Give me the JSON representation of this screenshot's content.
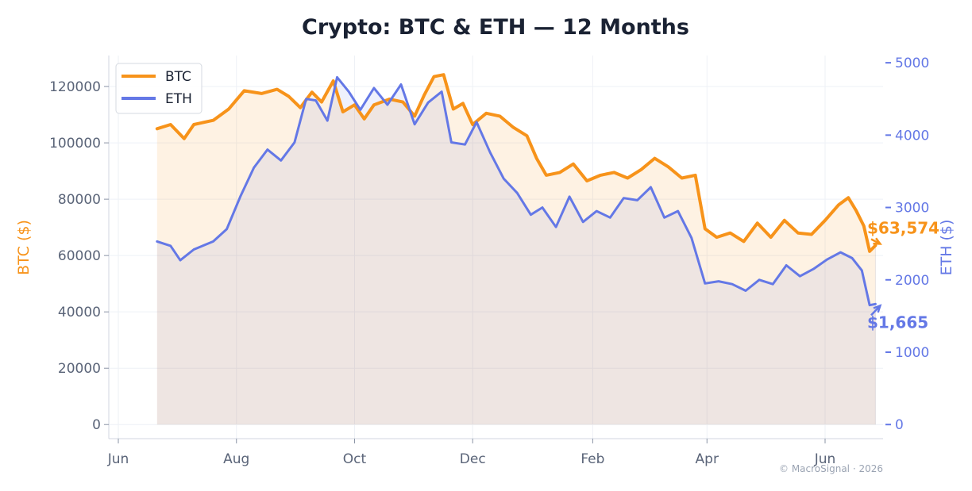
{
  "chart_data": {
    "type": "line",
    "title": "Crypto: BTC & ETH — 12 Months",
    "y_left_label": "BTC ($)",
    "y_right_label": "ETH ($)",
    "y_left_lim": [
      -5000,
      131000
    ],
    "y_right_lim": [
      -195,
      5100
    ],
    "y_left_ticks": [
      "0",
      "20000",
      "40000",
      "60000",
      "80000",
      "100000",
      "120000"
    ],
    "y_right_ticks": [
      "0",
      "1000",
      "2000",
      "3000",
      "4000",
      "5000"
    ],
    "x_ticks": [
      "Jun",
      "Aug",
      "Oct",
      "Dec",
      "Feb",
      "Apr",
      "Jun"
    ],
    "x_start": "2025-06-01",
    "x_end": "2026-06-25",
    "grid": true,
    "legend_position": "top-left",
    "series": [
      {
        "name": "BTC",
        "color": "#f7931a",
        "axis": "left",
        "points": [
          [
            "2025-06-21",
            105000
          ],
          [
            "2025-06-28",
            106500
          ],
          [
            "2025-07-05",
            101500
          ],
          [
            "2025-07-10",
            106500
          ],
          [
            "2025-07-20",
            108000
          ],
          [
            "2025-07-28",
            112000
          ],
          [
            "2025-08-05",
            118500
          ],
          [
            "2025-08-14",
            117500
          ],
          [
            "2025-08-22",
            119000
          ],
          [
            "2025-08-28",
            116500
          ],
          [
            "2025-09-03",
            112500
          ],
          [
            "2025-09-09",
            118000
          ],
          [
            "2025-09-14",
            114500
          ],
          [
            "2025-09-20",
            122000
          ],
          [
            "2025-09-25",
            111000
          ],
          [
            "2025-10-01",
            113500
          ],
          [
            "2025-10-06",
            108500
          ],
          [
            "2025-10-11",
            113500
          ],
          [
            "2025-10-19",
            115500
          ],
          [
            "2025-10-26",
            114500
          ],
          [
            "2025-11-01",
            109500
          ],
          [
            "2025-11-06",
            117000
          ],
          [
            "2025-11-11",
            123500
          ],
          [
            "2025-11-16",
            124200
          ],
          [
            "2025-11-21",
            112000
          ],
          [
            "2025-11-26",
            114000
          ],
          [
            "2025-12-01",
            106500
          ],
          [
            "2025-12-08",
            110500
          ],
          [
            "2025-12-15",
            109500
          ],
          [
            "2025-12-22",
            105500
          ],
          [
            "2025-12-29",
            102500
          ],
          [
            "2026-01-03",
            94500
          ],
          [
            "2026-01-08",
            88500
          ],
          [
            "2026-01-15",
            89500
          ],
          [
            "2026-01-22",
            92500
          ],
          [
            "2026-01-29",
            86500
          ],
          [
            "2026-02-05",
            88500
          ],
          [
            "2026-02-12",
            89500
          ],
          [
            "2026-02-19",
            87500
          ],
          [
            "2026-02-26",
            90500
          ],
          [
            "2026-03-05",
            94500
          ],
          [
            "2026-03-12",
            91500
          ],
          [
            "2026-03-19",
            87500
          ],
          [
            "2026-03-26",
            88500
          ],
          [
            "2026-03-31",
            69500
          ],
          [
            "2026-04-06",
            66500
          ],
          [
            "2026-04-13",
            68000
          ],
          [
            "2026-04-20",
            65000
          ],
          [
            "2026-04-27",
            71500
          ],
          [
            "2026-05-04",
            66500
          ],
          [
            "2026-05-11",
            72500
          ],
          [
            "2026-05-18",
            68000
          ],
          [
            "2026-05-25",
            67500
          ],
          [
            "2026-06-01",
            72500
          ],
          [
            "2026-06-08",
            78000
          ],
          [
            "2026-06-13",
            80500
          ],
          [
            "2026-06-17",
            76000
          ],
          [
            "2026-06-21",
            70500
          ],
          [
            "2026-06-24",
            61500
          ],
          [
            "2026-06-27",
            63574
          ]
        ]
      },
      {
        "name": "ETH",
        "color": "#6478e6",
        "axis": "right",
        "points": [
          [
            "2025-06-21",
            2530
          ],
          [
            "2025-06-28",
            2470
          ],
          [
            "2025-07-03",
            2270
          ],
          [
            "2025-07-10",
            2420
          ],
          [
            "2025-07-20",
            2530
          ],
          [
            "2025-07-27",
            2700
          ],
          [
            "2025-08-03",
            3150
          ],
          [
            "2025-08-10",
            3550
          ],
          [
            "2025-08-17",
            3800
          ],
          [
            "2025-08-24",
            3650
          ],
          [
            "2025-08-31",
            3900
          ],
          [
            "2025-09-06",
            4500
          ],
          [
            "2025-09-11",
            4480
          ],
          [
            "2025-09-17",
            4200
          ],
          [
            "2025-09-22",
            4800
          ],
          [
            "2025-09-28",
            4600
          ],
          [
            "2025-10-04",
            4350
          ],
          [
            "2025-10-11",
            4650
          ],
          [
            "2025-10-18",
            4420
          ],
          [
            "2025-10-25",
            4700
          ],
          [
            "2025-11-01",
            4150
          ],
          [
            "2025-11-08",
            4450
          ],
          [
            "2025-11-15",
            4600
          ],
          [
            "2025-11-20",
            3900
          ],
          [
            "2025-11-27",
            3870
          ],
          [
            "2025-12-03",
            4180
          ],
          [
            "2025-12-10",
            3760
          ],
          [
            "2025-12-17",
            3400
          ],
          [
            "2025-12-24",
            3200
          ],
          [
            "2025-12-31",
            2900
          ],
          [
            "2026-01-06",
            3000
          ],
          [
            "2026-01-13",
            2730
          ],
          [
            "2026-01-20",
            3150
          ],
          [
            "2026-01-27",
            2800
          ],
          [
            "2026-02-03",
            2950
          ],
          [
            "2026-02-10",
            2860
          ],
          [
            "2026-02-17",
            3130
          ],
          [
            "2026-02-24",
            3100
          ],
          [
            "2026-03-03",
            3280
          ],
          [
            "2026-03-10",
            2860
          ],
          [
            "2026-03-17",
            2950
          ],
          [
            "2026-03-24",
            2580
          ],
          [
            "2026-03-31",
            1950
          ],
          [
            "2026-04-07",
            1980
          ],
          [
            "2026-04-14",
            1940
          ],
          [
            "2026-04-21",
            1850
          ],
          [
            "2026-04-28",
            2000
          ],
          [
            "2026-05-05",
            1940
          ],
          [
            "2026-05-12",
            2200
          ],
          [
            "2026-05-19",
            2050
          ],
          [
            "2026-05-26",
            2150
          ],
          [
            "2026-06-02",
            2280
          ],
          [
            "2026-06-09",
            2380
          ],
          [
            "2026-06-15",
            2300
          ],
          [
            "2026-06-20",
            2130
          ],
          [
            "2026-06-24",
            1650
          ],
          [
            "2026-06-27",
            1665
          ]
        ]
      }
    ],
    "annotations": [
      {
        "text": "$63,574",
        "series": "BTC"
      },
      {
        "text": "$1,665",
        "series": "ETH"
      }
    ],
    "watermark": "© MacroSignal · 2026"
  }
}
